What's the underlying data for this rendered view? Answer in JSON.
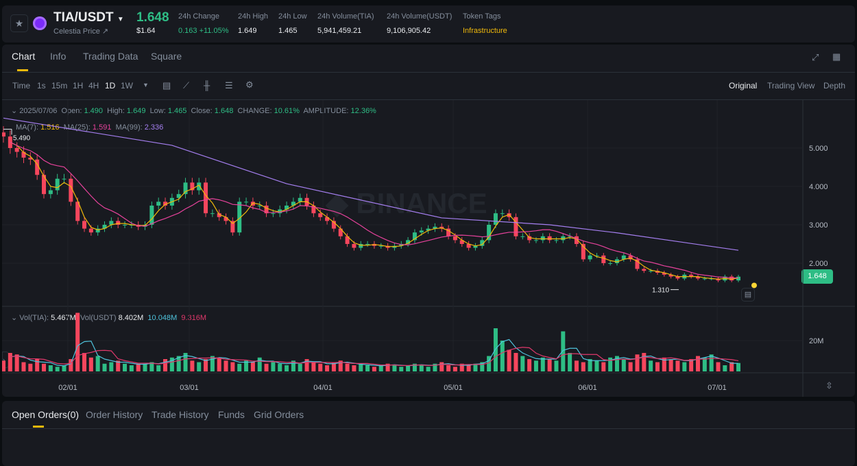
{
  "header": {
    "pair": "TIA/USDT",
    "subtitle": "Celestia Price ↗",
    "price": "1.648",
    "price_usd": "$1.64",
    "stats": [
      {
        "label": "24h Change",
        "value": "0.163 +11.05%"
      },
      {
        "label": "24h High",
        "value": "1.649"
      },
      {
        "label": "24h Low",
        "value": "1.465"
      },
      {
        "label": "24h Volume(TIA)",
        "value": "5,941,459.21"
      },
      {
        "label": "24h Volume(USDT)",
        "value": "9,106,905.42"
      },
      {
        "label": "Token Tags",
        "value": "Infrastructure"
      }
    ]
  },
  "tabs": [
    "Chart",
    "Info",
    "Trading Data",
    "Square"
  ],
  "toolbar": {
    "intervals": [
      "Time",
      "1s",
      "15m",
      "1H",
      "4H",
      "1D",
      "1W"
    ],
    "active": "1D",
    "views": [
      "Original",
      "Trading View",
      "Depth"
    ]
  },
  "legend": {
    "date": "2025/07/06",
    "open_l": "Open:",
    "open": "1.490",
    "high_l": "High:",
    "high": "1.649",
    "low_l": "Low:",
    "low": "1.465",
    "close_l": "Close:",
    "close": "1.648",
    "change_l": "CHANGE:",
    "change": "10.61%",
    "amp_l": "AMPLITUDE:",
    "amp": "12.36%",
    "ma7_l": "MA(7):",
    "ma7": "1.516",
    "ma25_l": "MA(25):",
    "ma25": "1.591",
    "ma99_l": "MA(99):",
    "ma99": "2.336",
    "vol_l": "Vol(TIA):",
    "vol": "5.467M",
    "volu_l": "Vol(USDT)",
    "volu": "8.402M",
    "vma1": "10.048M",
    "vma2": "9.316M"
  },
  "chart_data": {
    "type": "candlestick",
    "closes": [
      5.3,
      5.0,
      4.9,
      4.75,
      4.7,
      4.3,
      3.8,
      3.9,
      4.2,
      4.2,
      3.6,
      3.1,
      2.9,
      2.8,
      2.9,
      3.0,
      3.1,
      3.0,
      3.0,
      3.0,
      2.95,
      3.0,
      3.5,
      3.6,
      3.5,
      3.7,
      3.8,
      4.1,
      3.9,
      4.1,
      3.3,
      3.3,
      3.2,
      3.1,
      2.8,
      3.6,
      3.6,
      3.5,
      3.5,
      3.3,
      3.3,
      3.4,
      3.5,
      3.6,
      3.7,
      3.5,
      3.3,
      3.2,
      3.1,
      2.9,
      2.7,
      2.5,
      2.4,
      2.5,
      2.5,
      2.45,
      2.45,
      2.4,
      2.45,
      2.5,
      2.6,
      2.8,
      2.85,
      2.9,
      2.95,
      2.9,
      2.7,
      2.6,
      2.5,
      2.4,
      2.45,
      2.6,
      3.0,
      3.3,
      3.3,
      3.2,
      2.7,
      2.7,
      2.6,
      2.6,
      2.7,
      2.6,
      2.6,
      2.7,
      2.7,
      2.5,
      2.1,
      2.2,
      2.2,
      2.0,
      2.0,
      2.1,
      2.2,
      2.1,
      1.85,
      1.8,
      1.8,
      1.75,
      1.7,
      1.65,
      1.6,
      1.7,
      1.65,
      1.6,
      1.6,
      1.6,
      1.55,
      1.65,
      1.55,
      1.648
    ],
    "volumes_M": [
      7,
      12,
      11,
      6,
      5,
      8,
      5,
      4,
      3,
      4,
      8,
      38,
      12,
      9,
      10,
      5,
      6,
      7,
      5,
      4,
      5,
      5,
      6,
      4,
      8,
      9,
      10,
      12,
      7,
      6,
      8,
      10,
      9,
      7,
      6,
      5,
      7,
      6,
      9,
      5,
      6,
      5,
      4,
      7,
      5,
      8,
      6,
      5,
      4,
      6,
      7,
      5,
      4,
      5,
      4,
      3,
      4,
      5,
      4,
      3,
      4,
      5,
      4,
      3,
      5,
      6,
      4,
      3,
      5,
      4,
      5,
      6,
      10,
      28,
      20,
      14,
      12,
      10,
      8,
      7,
      9,
      8,
      7,
      26,
      12,
      7,
      6,
      8,
      7,
      6,
      9,
      10,
      8,
      6,
      11,
      12,
      7,
      6,
      9,
      8,
      7,
      6,
      8,
      10,
      9,
      11,
      6,
      4,
      6,
      5.467
    ],
    "ma99_anchors": [
      {
        "i": 0,
        "v": 5.78
      },
      {
        "i": 25,
        "v": 5.07
      },
      {
        "i": 42,
        "v": 4.07
      },
      {
        "i": 65,
        "v": 3.18
      },
      {
        "i": 81,
        "v": 3.0
      },
      {
        "i": 91,
        "v": 2.79
      },
      {
        "i": 109,
        "v": 2.336
      }
    ],
    "price_ticks": [
      "5.000",
      "4.000",
      "3.000",
      "2.000"
    ],
    "volume_tick": "20M",
    "x_ticks": [
      "02/01",
      "03/01",
      "04/01",
      "05/01",
      "06/01",
      "07/01"
    ],
    "last_price": "1.648",
    "max_label": "5.490",
    "min_label": "1.310",
    "colors": {
      "up": "#2ebd85",
      "down": "#f6465d",
      "ma7": "#f0b90b",
      "ma25": "#e6429b",
      "ma99": "#a57ff0",
      "vma1": "#4fc3dc",
      "vma2": "#e0386b"
    }
  },
  "bottom_tabs": [
    "Open Orders(0)",
    "Order History",
    "Trade History",
    "Funds",
    "Grid Orders"
  ]
}
